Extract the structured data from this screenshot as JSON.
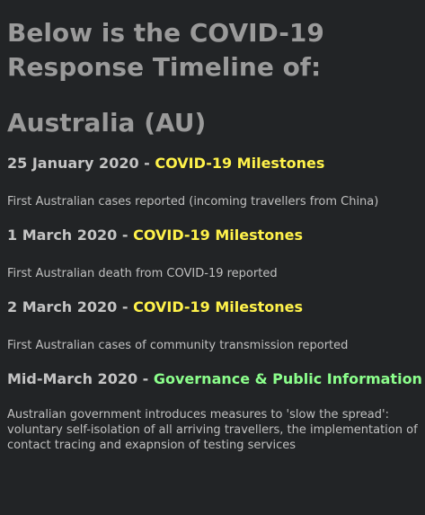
{
  "page": {
    "heading_line1": "Below is the COVID-19",
    "heading_line2": "Response Timeline of:",
    "country": "Australia (AU)"
  },
  "separator": " - ",
  "entries": [
    {
      "date": "25 January 2020",
      "category": "COVID-19 Milestones",
      "category_color": "#fff24a",
      "text": "First Australian cases reported (incoming travellers from China)"
    },
    {
      "date": "1 March 2020",
      "category": "COVID-19 Milestones",
      "category_color": "#fff24a",
      "text": "First Australian death from COVID-19 reported"
    },
    {
      "date": "2 March 2020",
      "category": "COVID-19 Milestones",
      "category_color": "#fff24a",
      "text": "First Australian cases of community transmission reported"
    },
    {
      "date": "Mid-March 2020",
      "category": "Governance & Public Information",
      "category_color": "#8cff8c",
      "text": "Australian government introduces measures to 'slow the spread': voluntary self-isolation of all arriving travellers, the implementation of contact tracing and exapnsion of testing services"
    }
  ]
}
